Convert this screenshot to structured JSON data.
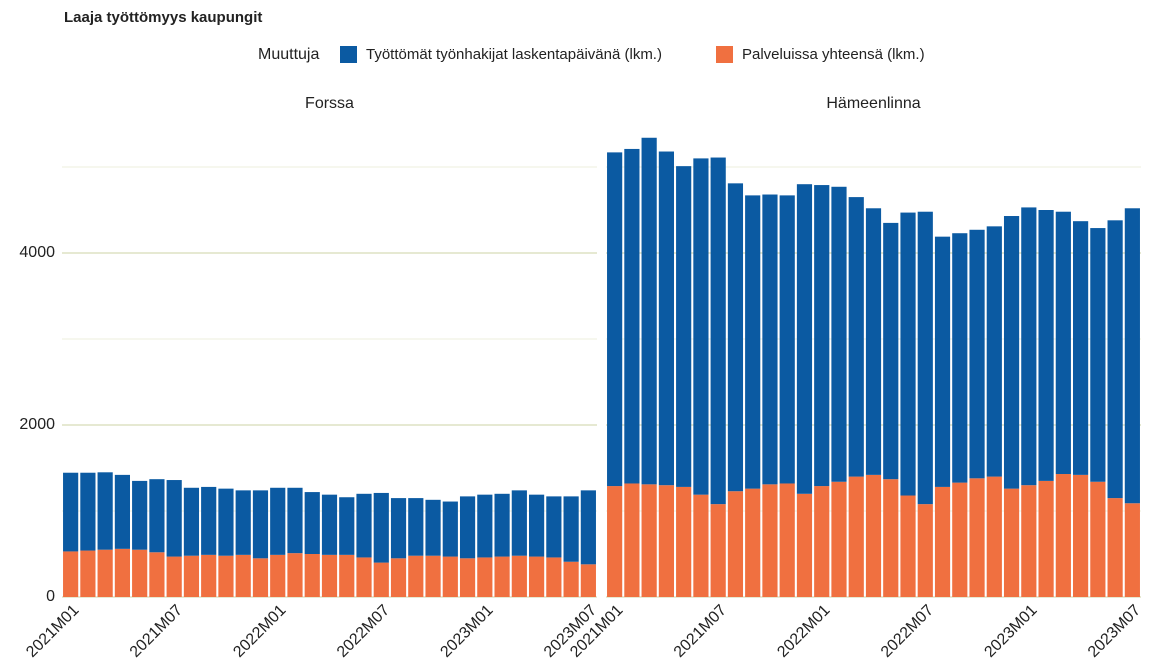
{
  "chart_data": {
    "type": "bar",
    "stacked": true,
    "title": "Laaja työttömyys kaupungit",
    "legend_title": "Muuttuja",
    "legend_position": "top",
    "ylim": [
      0,
      5500
    ],
    "yticks": [
      0,
      2000,
      4000
    ],
    "minor_gridlines": [
      1000,
      3000,
      5000
    ],
    "grid": true,
    "panels": [
      {
        "title": "Forssa",
        "categories": [
          "2021M01",
          null,
          null,
          null,
          null,
          null,
          "2021M07",
          null,
          null,
          null,
          null,
          null,
          "2022M01",
          null,
          null,
          null,
          null,
          null,
          "2022M07",
          null,
          null,
          null,
          null,
          null,
          "2023M01",
          null,
          null,
          null,
          null,
          null,
          "2023M07"
        ],
        "series": [
          {
            "name": "Työttömät työnhakijat laskentapäivänä (lkm.)",
            "color": "#0b5aa2",
            "values": [
              915,
              905,
              900,
              860,
              800,
              850,
              890,
              790,
              790,
              780,
              750,
              790,
              780,
              760,
              720,
              700,
              670,
              740,
              810,
              700,
              670,
              650,
              640,
              720,
              730,
              730,
              760,
              720,
              710,
              760,
              860
            ]
          },
          {
            "name": "Palveluissa yhteensä (lkm.)",
            "color": "#f07040",
            "values": [
              530,
              540,
              550,
              560,
              550,
              520,
              470,
              480,
              490,
              480,
              490,
              450,
              490,
              510,
              500,
              490,
              490,
              460,
              400,
              450,
              480,
              480,
              470,
              450,
              460,
              470,
              480,
              470,
              460,
              410,
              380
            ]
          }
        ]
      },
      {
        "title": "Hämeenlinna",
        "categories": [
          "2021M01",
          null,
          null,
          null,
          null,
          null,
          "2021M07",
          null,
          null,
          null,
          null,
          null,
          "2022M01",
          null,
          null,
          null,
          null,
          null,
          "2022M07",
          null,
          null,
          null,
          null,
          null,
          "2023M01",
          null,
          null,
          null,
          null,
          null,
          "2023M07"
        ],
        "series": [
          {
            "name": "Työttömät työnhakijat laskentapäivänä (lkm.)",
            "color": "#0b5aa2",
            "values": [
              3880,
              3890,
              4030,
              3880,
              3730,
              3910,
              4030,
              3580,
              3410,
              3370,
              3350,
              3600,
              3500,
              3430,
              3250,
              3100,
              2980,
              3290,
              3400,
              2910,
              2900,
              2890,
              2910,
              3170,
              3230,
              3150,
              3050,
              2950,
              2950,
              3230,
              3430
            ]
          },
          {
            "name": "Palveluissa yhteensä (lkm.)",
            "color": "#f07040",
            "values": [
              1290,
              1320,
              1310,
              1300,
              1280,
              1190,
              1080,
              1230,
              1260,
              1310,
              1320,
              1200,
              1290,
              1340,
              1400,
              1420,
              1370,
              1180,
              1080,
              1280,
              1330,
              1380,
              1400,
              1260,
              1300,
              1350,
              1430,
              1420,
              1340,
              1150,
              1090
            ]
          }
        ]
      }
    ]
  }
}
